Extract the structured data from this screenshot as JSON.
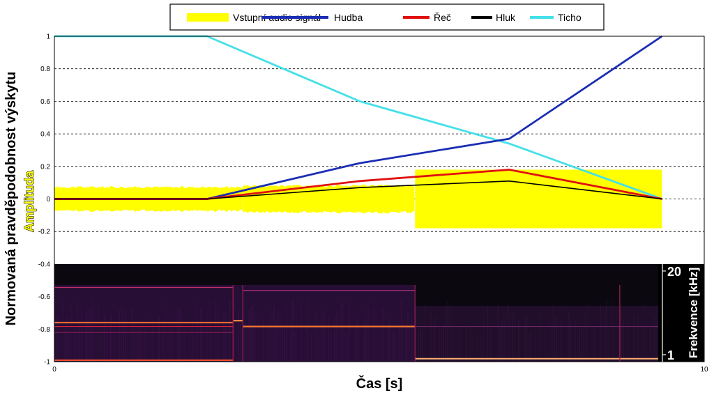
{
  "chart_data": {
    "type": "line",
    "ylabel": "Normovaná pravděpodobnost výskytu",
    "xlabel": "Čas [s]",
    "amplitude_label": "Amplituda",
    "xlim": [
      0,
      10
    ],
    "ylim": [
      -1,
      1
    ],
    "yticks": [
      "1",
      "0.8",
      "0.6",
      "0.4",
      "0.2",
      "0",
      "-0.2",
      "-0.4",
      "-0.6",
      "-0.8",
      "-1"
    ],
    "ytick_values": [
      1,
      0.8,
      0.6,
      0.4,
      0.2,
      0,
      -0.2,
      -0.4,
      -0.6,
      -0.8,
      -1
    ],
    "xticks": [
      "0",
      "10"
    ],
    "xtick_values": [
      0,
      10
    ],
    "grid": "horizontal dashed",
    "legend_position": "top-center",
    "x": [
      0,
      2.35,
      4.7,
      7.0,
      9.35
    ],
    "series": [
      {
        "name": "Hudba",
        "color": "#1a2db4",
        "values": [
          0,
          0,
          0.22,
          0.37,
          1.0
        ]
      },
      {
        "name": "Řeč",
        "color": "#e01010",
        "values": [
          0,
          0,
          0.11,
          0.18,
          0
        ]
      },
      {
        "name": "Hluk",
        "color": "#000000",
        "values": [
          0,
          0,
          0.07,
          0.11,
          0
        ]
      },
      {
        "name": "Ticho",
        "color": "#44e0e8",
        "x": [
          0,
          2.35,
          4.7,
          7.0,
          9.35
        ],
        "values": [
          1.0,
          1.0,
          0.6,
          0.34,
          0
        ]
      }
    ],
    "audio_signal": {
      "name": "Vstupní audio signál",
      "color": "#ffff00",
      "segments": [
        {
          "x0": 0,
          "x1": 2.9,
          "amp": 0.08
        },
        {
          "x0": 2.9,
          "x1": 5.55,
          "amp": 0.09
        },
        {
          "x0": 5.55,
          "x1": 9.35,
          "amp": 0.18
        }
      ]
    },
    "spectrogram": {
      "ylabel": "Frekvence [kHz]",
      "ticks": [
        "20",
        "1"
      ],
      "y_range": [
        -1,
        -0.4
      ]
    }
  },
  "legend": {
    "items": [
      "Vstupní audio signál",
      "Hudba",
      "Řeč",
      "Hluk",
      "Ticho"
    ],
    "colors": [
      "#ffff00",
      "#1a2db4",
      "#e01010",
      "#000000",
      "#44e0e8"
    ]
  }
}
